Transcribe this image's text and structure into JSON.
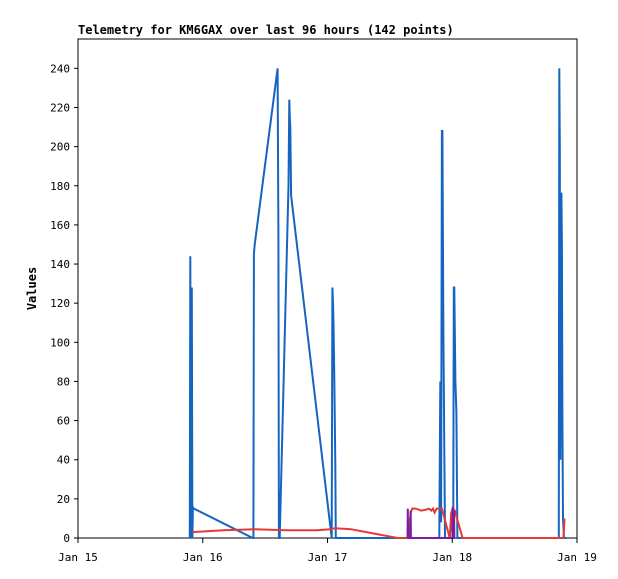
{
  "chart_data": {
    "type": "line",
    "title": "Telemetry for KM6GAX over last 96 hours (142 points)",
    "xlabel": "",
    "ylabel": "Values",
    "ylim": [
      0,
      255
    ],
    "xlim": [
      0,
      96
    ],
    "y_ticks": [
      0,
      20,
      40,
      60,
      80,
      100,
      120,
      140,
      160,
      180,
      200,
      220,
      240
    ],
    "x_ticks": [
      {
        "label": "Jan 15",
        "hour": 0
      },
      {
        "label": "Jan 16",
        "hour": 24
      },
      {
        "label": "Jan 17",
        "hour": 48
      },
      {
        "label": "Jan 18",
        "hour": 72
      },
      {
        "label": "Jan 19",
        "hour": 96
      }
    ],
    "grid": false,
    "legend": "none",
    "series": [
      {
        "color": "#1565c0",
        "x": [
          21.5,
          21.6,
          21.7,
          21.75,
          21.8,
          21.9,
          22.0,
          22.1,
          22.2,
          22.3,
          33.6,
          33.75,
          33.85,
          34.0,
          38.4,
          38.55,
          38.65,
          38.8,
          40.5,
          40.65,
          40.75,
          40.85,
          41.0,
          48.8,
          48.95,
          49.05,
          49.15,
          49.3,
          49.5,
          49.6,
          49.8,
          50.0,
          51.5,
          51.55,
          51.7,
          51.85,
          51.95,
          52.2,
          53.0,
          54.0,
          60.0,
          66.0,
          68.5,
          69.5,
          69.7,
          69.85,
          70.0,
          70.1,
          70.3,
          70.6,
          71.0,
          71.5,
          72.0,
          72.1,
          72.2,
          72.3,
          72.4,
          72.6,
          72.8,
          73.0,
          74.0,
          80.0,
          86.0,
          90.0,
          92.5,
          92.6,
          92.7,
          92.8,
          92.9,
          93.0,
          93.1,
          93.2,
          93.3,
          93.5,
          94.0
        ],
        "y": [
          0,
          144,
          55,
          0,
          112,
          128,
          0,
          16,
          15,
          15,
          0,
          0,
          145,
          150,
          240,
          155,
          0,
          0,
          180,
          224,
          215,
          210,
          175,
          0,
          128,
          120,
          110,
          82,
          38,
          0,
          0,
          0,
          0,
          0,
          0,
          0,
          0,
          0,
          0,
          0,
          0,
          0,
          0,
          0,
          80,
          8,
          208,
          208,
          104,
          0,
          0,
          0,
          15,
          0,
          16,
          128,
          128,
          80,
          64,
          0,
          0,
          0,
          0,
          0,
          0,
          240,
          200,
          40,
          176,
          176,
          150,
          60,
          10,
          0,
          0
        ]
      },
      {
        "color": "#e53935",
        "x": [
          22.0,
          28.0,
          34.0,
          40.0,
          46.0,
          48.5,
          49.5,
          52.5,
          61.5,
          63.5,
          64.0,
          64.3,
          65.0,
          66.0,
          67.0,
          67.5,
          68.0,
          68.3,
          68.6,
          69.0,
          70.0,
          71.5,
          71.8,
          72.2,
          72.5,
          74.0,
          80.0,
          86.0,
          92.0,
          93.4,
          93.6
        ],
        "y": [
          3,
          4,
          4.5,
          4,
          4,
          4.5,
          5,
          4.5,
          0,
          0,
          13,
          15,
          15,
          14,
          14.5,
          15,
          14,
          15,
          13,
          15,
          15,
          0,
          13,
          15,
          14,
          0,
          0,
          0,
          0,
          0,
          10
        ]
      },
      {
        "color": "#7b1fa2",
        "x": [
          63.4,
          63.45,
          63.5,
          63.9,
          64.0,
          64.05,
          72.05,
          72.1,
          72.15,
          72.3,
          72.35,
          72.4
        ],
        "y": [
          0,
          15,
          0,
          0,
          14,
          0,
          0,
          16,
          0,
          0,
          14,
          0
        ]
      }
    ]
  }
}
